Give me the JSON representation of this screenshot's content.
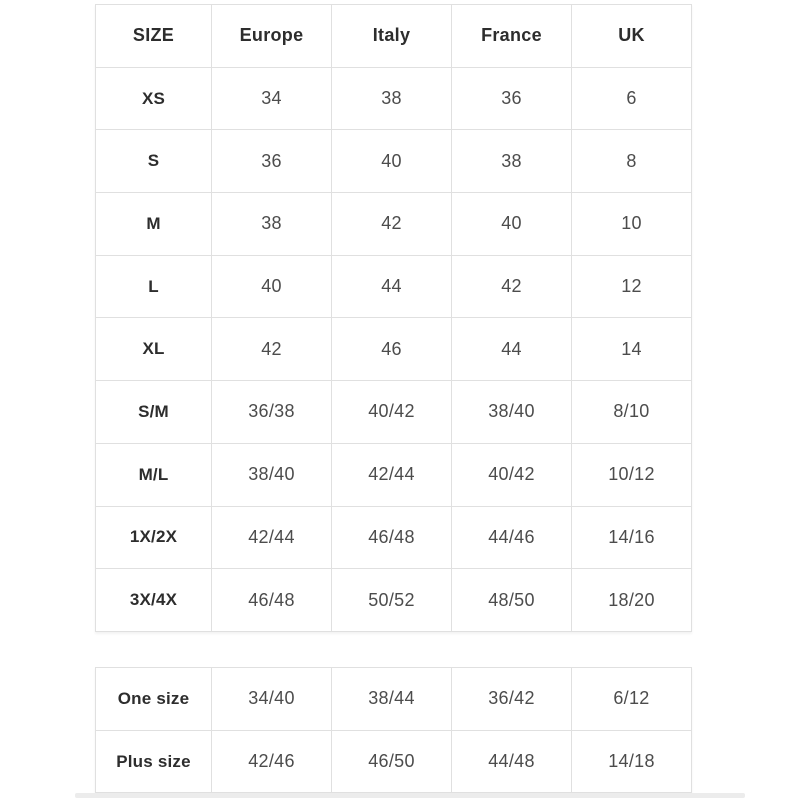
{
  "page": {
    "background": "#ffffff"
  },
  "colors": {
    "cell_border": "#e0e0e0",
    "header_text": "#2d2d2d",
    "cell_text": "#4c4c4c",
    "footer_strip": "#ececec"
  },
  "chart_data": [
    {
      "type": "table",
      "name": "size-conversion",
      "columns": [
        "SIZE",
        "Europe",
        "Italy",
        "France",
        "UK"
      ],
      "rows": [
        {
          "size": "XS",
          "values": [
            "34",
            "38",
            "36",
            "6"
          ]
        },
        {
          "size": "S",
          "values": [
            "36",
            "40",
            "38",
            "8"
          ]
        },
        {
          "size": "M",
          "values": [
            "38",
            "42",
            "40",
            "10"
          ]
        },
        {
          "size": "L",
          "values": [
            "40",
            "44",
            "42",
            "12"
          ]
        },
        {
          "size": "XL",
          "values": [
            "42",
            "46",
            "44",
            "14"
          ]
        },
        {
          "size": "S/M",
          "values": [
            "36/38",
            "40/42",
            "38/40",
            "8/10"
          ]
        },
        {
          "size": "M/L",
          "values": [
            "38/40",
            "42/44",
            "40/42",
            "10/12"
          ]
        },
        {
          "size": "1X/2X",
          "values": [
            "42/44",
            "46/48",
            "44/46",
            "14/16"
          ]
        },
        {
          "size": "3X/4X",
          "values": [
            "46/48",
            "50/52",
            "48/50",
            "18/20"
          ]
        }
      ]
    },
    {
      "type": "table",
      "name": "special-sizes",
      "columns": null,
      "rows": [
        {
          "size": "One size",
          "values": [
            "34/40",
            "38/44",
            "36/42",
            "6/12"
          ]
        },
        {
          "size": "Plus size",
          "values": [
            "42/46",
            "46/50",
            "44/48",
            "14/18"
          ]
        }
      ]
    }
  ]
}
